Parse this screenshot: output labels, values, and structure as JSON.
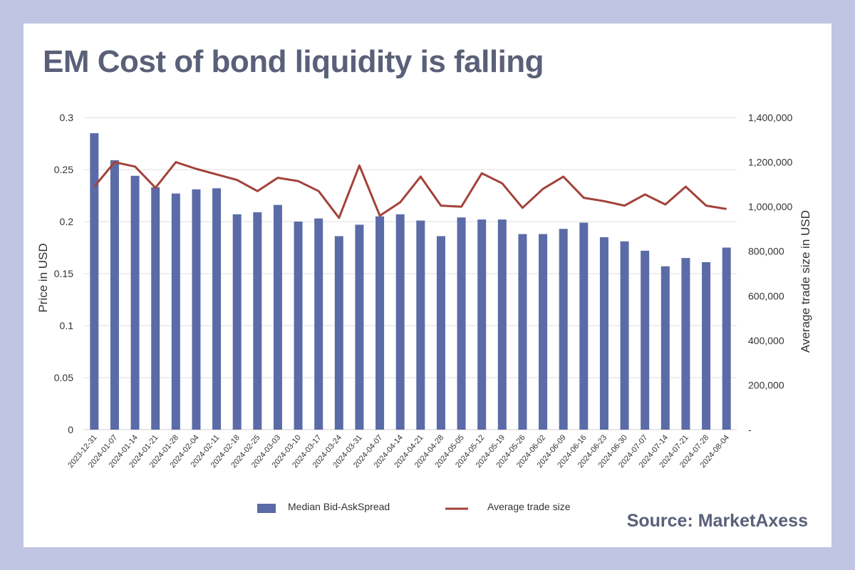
{
  "page": {
    "title": "EM Cost of bond liquidity is falling",
    "source": "Source: MarketAxess"
  },
  "colors": {
    "page_background": "#bfc5e2",
    "card_background": "#ffffff",
    "title_text": "#5b6079",
    "bar": "#5b6ba7",
    "line": "#a3423a",
    "grid": "#dcdcdc"
  },
  "chart_data": {
    "type": "bar",
    "combo": "bar+line (dual axis)",
    "categories": [
      "2023-12-31",
      "2024-01-07",
      "2024-01-14",
      "2024-01-21",
      "2024-01-28",
      "2024-02-04",
      "2024-02-11",
      "2024-02-18",
      "2024-02-25",
      "2024-03-03",
      "2024-03-10",
      "2024-03-17",
      "2024-03-24",
      "2024-03-31",
      "2024-04-07",
      "2024-04-14",
      "2024-04-21",
      "2024-04-28",
      "2024-05-05",
      "2024-05-12",
      "2024-05-19",
      "2024-05-26",
      "2024-06-02",
      "2024-06-09",
      "2024-06-16",
      "2024-06-23",
      "2024-06-30",
      "2024-07-07",
      "2024-07-14",
      "2024-07-21",
      "2024-07-28",
      "2024-08-04"
    ],
    "series": [
      {
        "name": "Median Bid-AskSpread",
        "type": "bar",
        "axis": "left",
        "values": [
          0.285,
          0.259,
          0.244,
          0.233,
          0.227,
          0.231,
          0.232,
          0.207,
          0.209,
          0.216,
          0.2,
          0.203,
          0.186,
          0.197,
          0.205,
          0.207,
          0.201,
          0.186,
          0.204,
          0.202,
          0.202,
          0.188,
          0.188,
          0.193,
          0.199,
          0.185,
          0.181,
          0.172,
          0.157,
          0.165,
          0.161,
          0.175
        ]
      },
      {
        "name": "Average trade size",
        "type": "line",
        "axis": "right",
        "values": [
          1090000,
          1200000,
          1180000,
          1085000,
          1200000,
          1170000,
          1145000,
          1120000,
          1070000,
          1130000,
          1115000,
          1070000,
          950000,
          1185000,
          960000,
          1020000,
          1135000,
          1005000,
          1000000,
          1150000,
          1105000,
          995000,
          1080000,
          1135000,
          1040000,
          1025000,
          1005000,
          1055000,
          1010000,
          1090000,
          1005000,
          990000
        ]
      }
    ],
    "left_axis": {
      "label": "Price in USD",
      "ylim": [
        0,
        0.3
      ],
      "ticks": [
        0,
        0.05,
        0.1,
        0.15,
        0.2,
        0.25,
        0.3
      ],
      "tick_labels": [
        "0",
        "0.05",
        "0.1",
        "0.15",
        "0.2",
        "0.25",
        "0.3"
      ]
    },
    "right_axis": {
      "label": "Average trade size in USD",
      "ylim": [
        0,
        1400000
      ],
      "ticks": [
        0,
        200000,
        400000,
        600000,
        800000,
        1000000,
        1200000,
        1400000
      ],
      "tick_labels": [
        "-",
        "200,000",
        "400,000",
        "600,000",
        "800,000",
        "1,000,000",
        "1,200,000",
        "1,400,000"
      ]
    },
    "grid": true,
    "legend": "bottom-center"
  }
}
